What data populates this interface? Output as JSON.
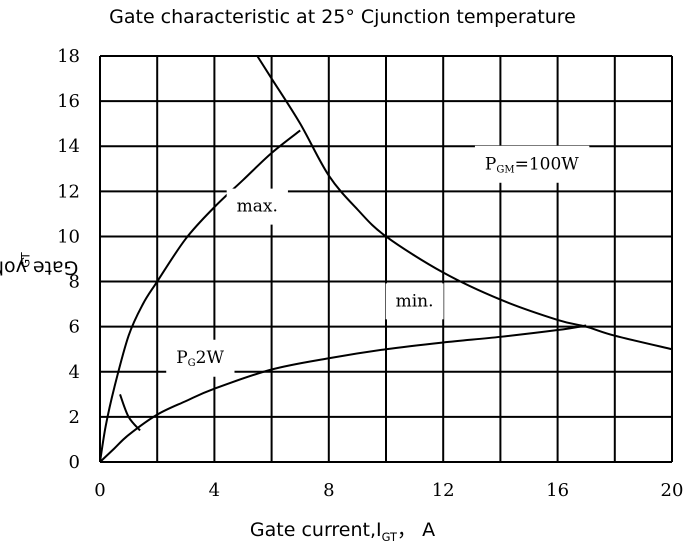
{
  "chart_data": {
    "type": "line",
    "title": "Gate characteristic at 25°  Cjunction temperature",
    "xlabel": {
      "main": "Gate current,I",
      "sub": "GT",
      "unit": "，  A"
    },
    "ylabel": {
      "main": "Gate voltage,V",
      "sub": "GT",
      "unit": "，  V"
    },
    "xlim": [
      0,
      20
    ],
    "ylim": [
      0,
      18
    ],
    "x_ticks": [
      0,
      4,
      8,
      12,
      16,
      20
    ],
    "y_ticks": [
      0,
      2,
      4,
      6,
      8,
      10,
      12,
      14,
      16,
      18
    ],
    "grid": true,
    "series": [
      {
        "points": [
          [
            0,
            0
          ],
          [
            0.2,
            1.6
          ],
          [
            0.5,
            3.3
          ],
          [
            1,
            5.6
          ],
          [
            1.5,
            7.0
          ],
          [
            2,
            8.0
          ],
          [
            3,
            9.9
          ],
          [
            4,
            11.3
          ],
          [
            5,
            12.5
          ],
          [
            6,
            13.7
          ],
          [
            7,
            14.7
          ]
        ]
      },
      {
        "points": [
          [
            0,
            0
          ],
          [
            0.5,
            0.6
          ],
          [
            1,
            1.2
          ],
          [
            2,
            2.1
          ],
          [
            3,
            2.7
          ],
          [
            4,
            3.25
          ],
          [
            6,
            4.1
          ],
          [
            8,
            4.6
          ],
          [
            10,
            5.0
          ],
          [
            12,
            5.3
          ],
          [
            14,
            5.55
          ],
          [
            16,
            5.85
          ],
          [
            17,
            6.05
          ]
        ]
      },
      {
        "points": [
          [
            5.5,
            18
          ],
          [
            6,
            17
          ],
          [
            7,
            15
          ],
          [
            8,
            12.7
          ],
          [
            9,
            11.2
          ],
          [
            10,
            10
          ],
          [
            12,
            8.4
          ],
          [
            14,
            7.2
          ],
          [
            16,
            6.3
          ],
          [
            17,
            6.0
          ],
          [
            18,
            5.6
          ],
          [
            20,
            5.0
          ]
        ]
      },
      {
        "points": [
          [
            0.7,
            3.0
          ],
          [
            1.0,
            2.0
          ],
          [
            1.4,
            1.4
          ]
        ]
      }
    ],
    "annotations": [
      {
        "id": "max",
        "text": "max.",
        "x": 5.5,
        "y": 11.3
      },
      {
        "id": "min",
        "text": "min.",
        "x": 11,
        "y": 7.1
      },
      {
        "id": "pgm",
        "main": "P",
        "sub": "GM",
        "rest": "=100W",
        "x": 15.1,
        "y": 13.2
      },
      {
        "id": "pg",
        "main": "P",
        "sub": "G",
        "rest": "2W",
        "x": 3.5,
        "y": 4.6
      }
    ]
  }
}
